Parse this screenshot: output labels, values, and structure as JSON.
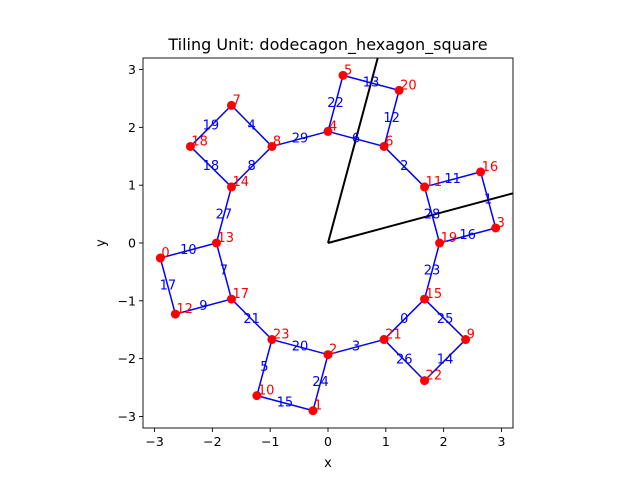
{
  "chart_data": {
    "type": "diagram",
    "title": "Tiling Unit: dodecagon_hexagon_square",
    "xlabel": "x",
    "ylabel": "y",
    "xlim": [
      -3.2,
      3.2
    ],
    "ylim": [
      -3.2,
      3.2
    ],
    "xticks": [
      -3,
      -2,
      -1,
      0,
      1,
      2,
      3
    ],
    "yticks": [
      -3,
      -2,
      -1,
      0,
      1,
      2,
      3
    ],
    "colors": {
      "edge": "#0000ff",
      "vertex": "#ff0000",
      "vertex_label": "#ff0000",
      "edge_label": "#0000ff",
      "lattice": "#000000"
    },
    "vertices": [
      {
        "id": "0",
        "x": -2.9,
        "y": -0.26
      },
      {
        "id": "1",
        "x": -0.26,
        "y": -2.9
      },
      {
        "id": "2",
        "x": 0.0,
        "y": -1.93
      },
      {
        "id": "3",
        "x": 2.9,
        "y": 0.26
      },
      {
        "id": "4",
        "x": 0.0,
        "y": 1.93
      },
      {
        "id": "5",
        "x": 0.26,
        "y": 2.9
      },
      {
        "id": "6",
        "x": 0.97,
        "y": 1.67
      },
      {
        "id": "7",
        "x": -1.67,
        "y": 2.38
      },
      {
        "id": "8",
        "x": -0.97,
        "y": 1.67
      },
      {
        "id": "9",
        "x": 2.38,
        "y": -1.67
      },
      {
        "id": "10",
        "x": -1.23,
        "y": -2.64
      },
      {
        "id": "11",
        "x": 1.67,
        "y": 0.97
      },
      {
        "id": "12",
        "x": -2.64,
        "y": -1.23
      },
      {
        "id": "13",
        "x": -1.93,
        "y": 0.0
      },
      {
        "id": "14",
        "x": -1.67,
        "y": 0.97
      },
      {
        "id": "15",
        "x": 1.67,
        "y": -0.97
      },
      {
        "id": "16",
        "x": 2.64,
        "y": 1.23
      },
      {
        "id": "17",
        "x": -1.67,
        "y": -0.97
      },
      {
        "id": "18",
        "x": -2.38,
        "y": 1.67
      },
      {
        "id": "19",
        "x": 1.93,
        "y": 0.0
      },
      {
        "id": "20",
        "x": 1.23,
        "y": 2.64
      },
      {
        "id": "21",
        "x": 0.97,
        "y": -1.67
      },
      {
        "id": "22",
        "x": 1.67,
        "y": -2.38
      },
      {
        "id": "23",
        "x": -0.97,
        "y": -1.67
      }
    ],
    "edges": [
      {
        "id": "0",
        "from": "15",
        "to": "21"
      },
      {
        "id": "1",
        "from": "16",
        "to": "3"
      },
      {
        "id": "2",
        "from": "6",
        "to": "11"
      },
      {
        "id": "3",
        "from": "2",
        "to": "21"
      },
      {
        "id": "4",
        "from": "7",
        "to": "8"
      },
      {
        "id": "5",
        "from": "10",
        "to": "23"
      },
      {
        "id": "6",
        "from": "4",
        "to": "6"
      },
      {
        "id": "7",
        "from": "13",
        "to": "17"
      },
      {
        "id": "8",
        "from": "14",
        "to": "8"
      },
      {
        "id": "9",
        "from": "12",
        "to": "17"
      },
      {
        "id": "10",
        "from": "0",
        "to": "13"
      },
      {
        "id": "11",
        "from": "11",
        "to": "16"
      },
      {
        "id": "12",
        "from": "6",
        "to": "20"
      },
      {
        "id": "13",
        "from": "5",
        "to": "20"
      },
      {
        "id": "14",
        "from": "9",
        "to": "22"
      },
      {
        "id": "15",
        "from": "10",
        "to": "1"
      },
      {
        "id": "16",
        "from": "19",
        "to": "3"
      },
      {
        "id": "17",
        "from": "0",
        "to": "12"
      },
      {
        "id": "18",
        "from": "14",
        "to": "18"
      },
      {
        "id": "19",
        "from": "18",
        "to": "7"
      },
      {
        "id": "20",
        "from": "23",
        "to": "2"
      },
      {
        "id": "21",
        "from": "17",
        "to": "23"
      },
      {
        "id": "22",
        "from": "4",
        "to": "5"
      },
      {
        "id": "23",
        "from": "19",
        "to": "15"
      },
      {
        "id": "24",
        "from": "1",
        "to": "2"
      },
      {
        "id": "25",
        "from": "15",
        "to": "9"
      },
      {
        "id": "26",
        "from": "21",
        "to": "22"
      },
      {
        "id": "27",
        "from": "13",
        "to": "14"
      },
      {
        "id": "28",
        "from": "11",
        "to": "19"
      },
      {
        "id": "29",
        "from": "8",
        "to": "4"
      }
    ],
    "lattice_vectors": [
      {
        "name": "a1",
        "x": 3.2,
        "y": 0.86
      },
      {
        "name": "a2",
        "x": 0.86,
        "y": 3.2
      }
    ]
  }
}
